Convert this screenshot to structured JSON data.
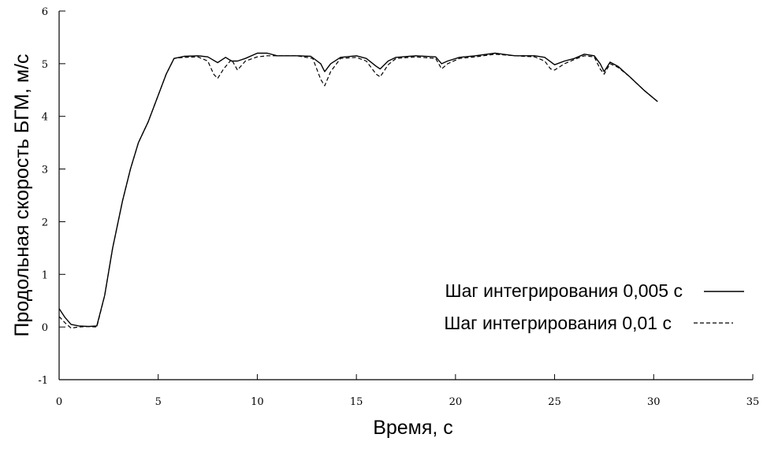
{
  "chart_data": {
    "type": "line",
    "title": "",
    "xlabel": "Время, с",
    "ylabel": "Продольная скорость БГМ, м/с",
    "xlim": [
      0,
      35
    ],
    "ylim": [
      -1,
      6
    ],
    "x_ticks": [
      0,
      5,
      10,
      15,
      20,
      25,
      30,
      35
    ],
    "y_ticks": [
      -1,
      0,
      1,
      2,
      3,
      4,
      5,
      6
    ],
    "grid": false,
    "legend_position": "right",
    "series": [
      {
        "name": "Шаг интегрирования 0,005 с",
        "style": "solid",
        "color": "#000000",
        "points": [
          [
            0,
            0.35
          ],
          [
            0.3,
            0.18
          ],
          [
            0.6,
            0.05
          ],
          [
            1.0,
            0.02
          ],
          [
            1.5,
            0.01
          ],
          [
            1.9,
            0.02
          ],
          [
            2.3,
            0.6
          ],
          [
            2.7,
            1.5
          ],
          [
            3.2,
            2.4
          ],
          [
            3.6,
            3.0
          ],
          [
            4.0,
            3.5
          ],
          [
            4.5,
            3.9
          ],
          [
            5.0,
            4.4
          ],
          [
            5.4,
            4.8
          ],
          [
            5.8,
            5.1
          ],
          [
            6.3,
            5.14
          ],
          [
            7.0,
            5.15
          ],
          [
            7.5,
            5.13
          ],
          [
            8.0,
            5.02
          ],
          [
            8.4,
            5.12
          ],
          [
            8.7,
            5.05
          ],
          [
            9.0,
            5.05
          ],
          [
            9.4,
            5.1
          ],
          [
            10.0,
            5.2
          ],
          [
            10.5,
            5.2
          ],
          [
            11.0,
            5.15
          ],
          [
            12.0,
            5.15
          ],
          [
            12.7,
            5.14
          ],
          [
            13.2,
            5.0
          ],
          [
            13.4,
            4.85
          ],
          [
            13.7,
            5.0
          ],
          [
            14.2,
            5.12
          ],
          [
            15.0,
            5.15
          ],
          [
            15.5,
            5.1
          ],
          [
            16.0,
            4.95
          ],
          [
            16.2,
            4.9
          ],
          [
            16.6,
            5.05
          ],
          [
            17.0,
            5.12
          ],
          [
            18.0,
            5.15
          ],
          [
            19.0,
            5.13
          ],
          [
            19.3,
            5.0
          ],
          [
            19.6,
            5.05
          ],
          [
            20.2,
            5.12
          ],
          [
            21.0,
            5.15
          ],
          [
            22.0,
            5.2
          ],
          [
            23.0,
            5.15
          ],
          [
            24.0,
            5.15
          ],
          [
            24.5,
            5.12
          ],
          [
            25.0,
            4.98
          ],
          [
            25.5,
            5.05
          ],
          [
            26.0,
            5.1
          ],
          [
            26.5,
            5.18
          ],
          [
            27.0,
            5.15
          ],
          [
            27.3,
            5.0
          ],
          [
            27.5,
            4.85
          ],
          [
            27.8,
            5.03
          ],
          [
            28.2,
            4.95
          ],
          [
            28.8,
            4.75
          ],
          [
            29.5,
            4.5
          ],
          [
            30.2,
            4.28
          ]
        ]
      },
      {
        "name": "Шаг интегрирования 0,01 с",
        "style": "dashed",
        "color": "#000000",
        "points": [
          [
            0,
            0.2
          ],
          [
            0.3,
            0.08
          ],
          [
            0.6,
            -0.02
          ],
          [
            1.0,
            0.0
          ],
          [
            1.5,
            0.01
          ],
          [
            1.9,
            0.0
          ],
          [
            2.3,
            0.6
          ],
          [
            2.7,
            1.5
          ],
          [
            3.2,
            2.4
          ],
          [
            3.6,
            3.0
          ],
          [
            4.0,
            3.5
          ],
          [
            4.5,
            3.9
          ],
          [
            5.0,
            4.4
          ],
          [
            5.4,
            4.8
          ],
          [
            5.8,
            5.1
          ],
          [
            6.3,
            5.12
          ],
          [
            7.0,
            5.13
          ],
          [
            7.5,
            5.05
          ],
          [
            7.8,
            4.8
          ],
          [
            8.0,
            4.72
          ],
          [
            8.3,
            4.9
          ],
          [
            8.7,
            5.08
          ],
          [
            9.0,
            4.88
          ],
          [
            9.4,
            5.05
          ],
          [
            10.0,
            5.13
          ],
          [
            10.5,
            5.15
          ],
          [
            11.0,
            5.15
          ],
          [
            12.0,
            5.15
          ],
          [
            12.8,
            5.1
          ],
          [
            13.2,
            4.7
          ],
          [
            13.4,
            4.58
          ],
          [
            13.7,
            4.85
          ],
          [
            14.2,
            5.1
          ],
          [
            15.0,
            5.12
          ],
          [
            15.5,
            5.05
          ],
          [
            16.0,
            4.8
          ],
          [
            16.2,
            4.75
          ],
          [
            16.6,
            4.98
          ],
          [
            17.0,
            5.1
          ],
          [
            18.0,
            5.13
          ],
          [
            19.0,
            5.1
          ],
          [
            19.3,
            4.9
          ],
          [
            19.6,
            5.0
          ],
          [
            20.2,
            5.1
          ],
          [
            21.0,
            5.13
          ],
          [
            22.0,
            5.18
          ],
          [
            23.0,
            5.15
          ],
          [
            24.0,
            5.13
          ],
          [
            24.5,
            5.05
          ],
          [
            24.8,
            4.9
          ],
          [
            25.0,
            4.88
          ],
          [
            25.5,
            5.0
          ],
          [
            26.0,
            5.08
          ],
          [
            26.5,
            5.15
          ],
          [
            27.0,
            5.13
          ],
          [
            27.3,
            4.9
          ],
          [
            27.5,
            4.8
          ],
          [
            27.8,
            5.0
          ],
          [
            28.2,
            4.93
          ],
          [
            28.8,
            4.75
          ],
          [
            29.5,
            4.5
          ],
          [
            30.2,
            4.28
          ]
        ]
      }
    ]
  }
}
